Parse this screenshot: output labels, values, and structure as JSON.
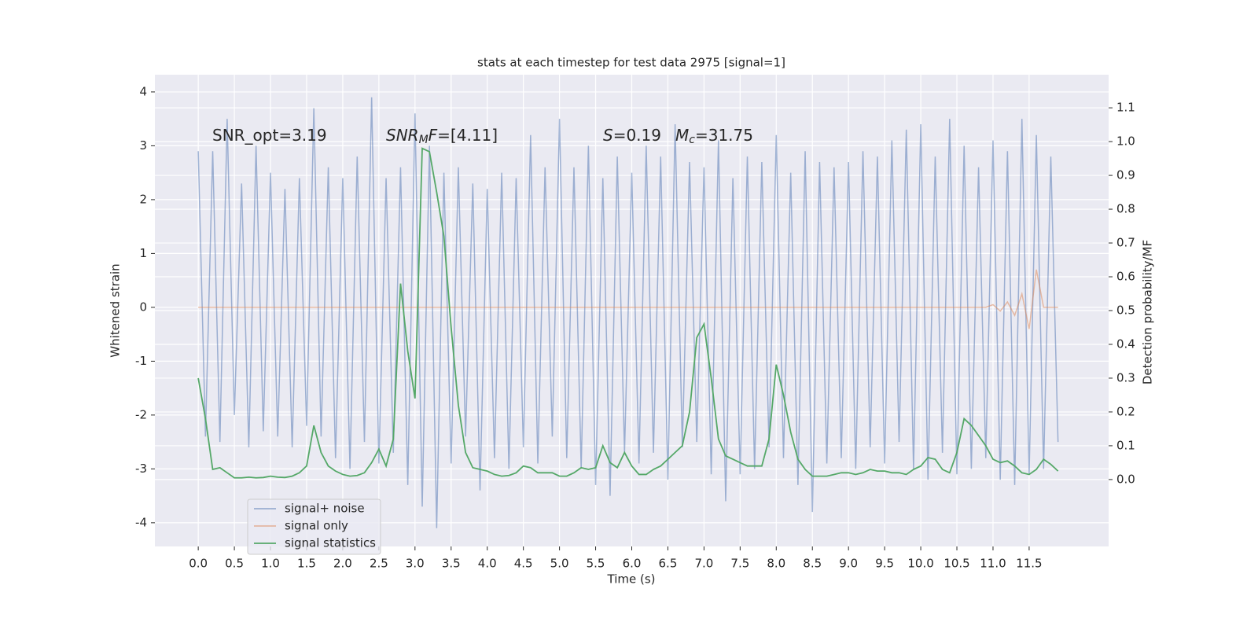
{
  "chart_data": {
    "type": "line",
    "title": "stats at each timestep for test data 2975 [signal=1]",
    "xlabel": "Time (s)",
    "ylabel": "Whitened strain",
    "y2label": "Detection probability/MF",
    "xlim": [
      -0.6,
      12.6
    ],
    "ylim": [
      -4.44,
      4.32
    ],
    "y2lim": [
      -0.198,
      1.198
    ],
    "xticks": [
      {
        "value": 0,
        "label": "0.0"
      },
      0.5,
      {
        "value": 1,
        "label": "1.0"
      },
      1.5,
      {
        "value": 2,
        "label": "2.0"
      },
      2.5,
      {
        "value": 3,
        "label": "3.0"
      },
      3.5,
      {
        "value": 4,
        "label": "4.0"
      },
      4.5,
      {
        "value": 5,
        "label": "5.0"
      },
      5.5,
      {
        "value": 6,
        "label": "6.0"
      },
      6.5,
      {
        "value": 7,
        "label": "7.0"
      },
      7.5,
      {
        "value": 8,
        "label": "8.0"
      },
      8.5,
      {
        "value": 9,
        "label": "9.0"
      },
      9.5,
      {
        "value": 10,
        "label": "10.0"
      },
      10.5,
      {
        "value": 11,
        "label": "11.0"
      },
      11.5
    ],
    "yticks": [
      -4,
      -3,
      -2,
      -1,
      0,
      1,
      2,
      3,
      4
    ],
    "y2ticks": [
      {
        "value": 0,
        "label": "0.0"
      },
      0.1,
      0.2,
      0.3,
      0.4,
      0.5,
      0.6,
      0.7,
      0.8,
      0.9,
      {
        "value": 1,
        "label": "1.0"
      },
      1.1
    ],
    "grid": true,
    "legend": "lower left",
    "x": [
      0,
      0.1,
      0.2,
      0.3,
      0.4,
      0.5,
      0.6,
      0.7,
      0.8,
      0.9,
      1,
      1.1,
      1.2,
      1.3,
      1.4,
      1.5,
      1.6,
      1.7,
      1.8,
      1.9,
      2,
      2.1,
      2.2,
      2.3,
      2.4,
      2.5,
      2.6,
      2.7,
      2.8,
      2.9,
      3,
      3.1,
      3.2,
      3.3,
      3.4,
      3.5,
      3.6,
      3.7,
      3.8,
      3.9,
      4,
      4.1,
      4.2,
      4.3,
      4.4,
      4.5,
      4.6,
      4.7,
      4.8,
      4.9,
      5,
      5.1,
      5.2,
      5.3,
      5.4,
      5.5,
      5.6,
      5.7,
      5.8,
      5.9,
      6,
      6.1,
      6.2,
      6.3,
      6.4,
      6.5,
      6.6,
      6.7,
      6.8,
      6.9,
      7,
      7.1,
      7.2,
      7.3,
      7.4,
      7.5,
      7.6,
      7.7,
      7.8,
      7.9,
      8,
      8.1,
      8.2,
      8.3,
      8.4,
      8.5,
      8.6,
      8.7,
      8.8,
      8.9,
      9,
      9.1,
      9.2,
      9.3,
      9.4,
      9.5,
      9.6,
      9.7,
      9.8,
      9.9,
      10,
      10.1,
      10.2,
      10.3,
      10.4,
      10.5,
      10.6,
      10.7,
      10.8,
      10.9,
      11,
      11.1,
      11.2,
      11.3,
      11.4,
      11.5,
      11.6,
      11.7,
      11.8,
      11.9
    ],
    "series": [
      {
        "name": "signal+ noise",
        "color": "#4c72b0",
        "opacity": 0.5,
        "values": [
          2.9,
          -2.4,
          2.9,
          -2.5,
          3.5,
          -2.0,
          2.3,
          -2.6,
          3.0,
          -2.3,
          2.5,
          -2.4,
          2.2,
          -2.6,
          2.4,
          -2.2,
          3.7,
          -2.4,
          2.6,
          -2.8,
          2.4,
          -3.0,
          2.8,
          -2.5,
          3.9,
          -2.9,
          2.4,
          -2.7,
          2.6,
          -3.3,
          3.6,
          -3.7,
          3.0,
          -4.1,
          2.5,
          -2.9,
          2.6,
          -2.4,
          2.3,
          -3.4,
          2.2,
          -2.8,
          2.5,
          -3.0,
          2.4,
          -2.6,
          3.2,
          -2.9,
          2.6,
          -2.4,
          3.5,
          -2.8,
          2.6,
          -3.0,
          3.0,
          -3.3,
          2.4,
          -3.5,
          2.8,
          -2.7,
          2.5,
          -2.9,
          3.0,
          -2.7,
          2.8,
          -3.2,
          3.4,
          -2.6,
          2.7,
          -2.5,
          2.6,
          -3.1,
          3.1,
          -3.6,
          2.4,
          -3.1,
          2.8,
          -3.0,
          2.7,
          -2.6,
          3.2,
          -2.8,
          2.5,
          -3.3,
          2.9,
          -3.8,
          2.7,
          -2.9,
          2.6,
          -2.8,
          2.7,
          -3.0,
          2.9,
          -2.6,
          2.8,
          -2.9,
          3.1,
          -2.5,
          3.3,
          -3.0,
          3.4,
          -3.2,
          2.8,
          -2.7,
          3.5,
          -3.1,
          3.0,
          -3.0,
          2.6,
          -2.8,
          3.1,
          -3.2,
          2.9,
          -3.3,
          3.5,
          -3.1,
          3.2,
          -3.0,
          2.8,
          -2.5
        ]
      },
      {
        "name": "signal only",
        "color": "#dd8452",
        "opacity": 0.5,
        "values": [
          0,
          0,
          0,
          0,
          0,
          0,
          0,
          0,
          0,
          0,
          0,
          0,
          0,
          0,
          0,
          0,
          0,
          0,
          0,
          0,
          0,
          0,
          0,
          0,
          0,
          0,
          0,
          0,
          0,
          0,
          0,
          0,
          0,
          0,
          0,
          0,
          0,
          0,
          0,
          0,
          0,
          0,
          0,
          0,
          0,
          0,
          0,
          0,
          0,
          0,
          0,
          0,
          0,
          0,
          0,
          0,
          0,
          0,
          0,
          0,
          0,
          0,
          0,
          0,
          0,
          0,
          0,
          0,
          0,
          0,
          0,
          0,
          0,
          0,
          0,
          0,
          0,
          0,
          0,
          0,
          0,
          0,
          0,
          0,
          0,
          0,
          0,
          0,
          0,
          0,
          0,
          0,
          0,
          0,
          0,
          0,
          0,
          0,
          0,
          0,
          0,
          0,
          0,
          0,
          0,
          0,
          0,
          0,
          0,
          0,
          0.05,
          -0.07,
          0.1,
          -0.15,
          0.25,
          -0.4,
          0.7,
          0,
          0,
          0
        ]
      },
      {
        "name": "signal statistics",
        "color": "#55a868",
        "opacity": 1,
        "axis": "y2",
        "values": [
          0.3,
          0.18,
          0.03,
          0.035,
          0.02,
          0.005,
          0.005,
          0.007,
          0.005,
          0.006,
          0.01,
          0.007,
          0.006,
          0.01,
          0.02,
          0.04,
          0.16,
          0.08,
          0.04,
          0.025,
          0.015,
          0.01,
          0.012,
          0.02,
          0.05,
          0.09,
          0.04,
          0.12,
          0.58,
          0.38,
          0.24,
          0.98,
          0.97,
          0.85,
          0.72,
          0.45,
          0.22,
          0.08,
          0.035,
          0.03,
          0.025,
          0.015,
          0.01,
          0.012,
          0.02,
          0.04,
          0.035,
          0.02,
          0.02,
          0.02,
          0.01,
          0.01,
          0.02,
          0.035,
          0.03,
          0.035,
          0.1,
          0.05,
          0.035,
          0.08,
          0.04,
          0.015,
          0.015,
          0.03,
          0.04,
          0.06,
          0.08,
          0.1,
          0.2,
          0.42,
          0.46,
          0.3,
          0.12,
          0.07,
          0.06,
          0.05,
          0.04,
          0.04,
          0.04,
          0.12,
          0.34,
          0.25,
          0.14,
          0.06,
          0.03,
          0.01,
          0.01,
          0.01,
          0.015,
          0.02,
          0.02,
          0.015,
          0.02,
          0.03,
          0.025,
          0.025,
          0.02,
          0.02,
          0.015,
          0.03,
          0.04,
          0.065,
          0.06,
          0.03,
          0.02,
          0.08,
          0.18,
          0.16,
          0.13,
          0.1,
          0.06,
          0.05,
          0.055,
          0.04,
          0.02,
          0.015,
          0.03,
          0.06,
          0.045,
          0.025
        ]
      }
    ],
    "annotations": [
      [
        {
          "text": "SNR_opt=3.19"
        }
      ],
      [
        {
          "text": "SNR",
          "italic": true
        },
        {
          "text": "M",
          "italic": true,
          "sub": true
        },
        {
          "text": "F",
          "italic": true
        },
        {
          "text": "=[4.11]"
        }
      ],
      [
        {
          "text": "S",
          "italic": true
        },
        {
          "text": "=0.19"
        }
      ],
      [
        {
          "text": "M",
          "italic": true
        },
        {
          "text": "c",
          "italic": true,
          "sub": true
        },
        {
          "text": "=31.75"
        }
      ]
    ]
  }
}
